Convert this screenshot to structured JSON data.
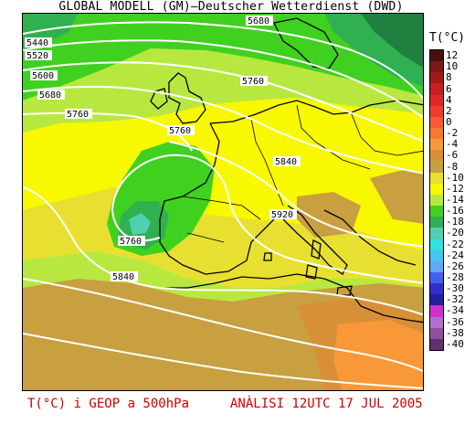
{
  "title": "GLOBAL MODELL (GM)—Deutscher Wetterdienst (DWD)",
  "footer": {
    "product": "T(°C) i GEOP a 500hPa",
    "analysis": "ANÀLISI 12UTC 17 JUL 2005"
  },
  "legend": {
    "unit": "T(°C)",
    "entries": [
      {
        "label": "12",
        "color": "#4a1010"
      },
      {
        "label": "10",
        "color": "#7a1a1a"
      },
      {
        "label": "8",
        "color": "#a01818"
      },
      {
        "label": "6",
        "color": "#c82020"
      },
      {
        "label": "4",
        "color": "#e02828"
      },
      {
        "label": "2",
        "color": "#f03c2c"
      },
      {
        "label": "0",
        "color": "#f85a30"
      },
      {
        "label": "-2",
        "color": "#f87830"
      },
      {
        "label": "-4",
        "color": "#f89838"
      },
      {
        "label": "-6",
        "color": "#d89038"
      },
      {
        "label": "-8",
        "color": "#c8a040"
      },
      {
        "label": "-10",
        "color": "#e8e030"
      },
      {
        "label": "-12",
        "color": "#f8f800"
      },
      {
        "label": "-14",
        "color": "#b8e840"
      },
      {
        "label": "-16",
        "color": "#40d020"
      },
      {
        "label": "-18",
        "color": "#30b050"
      },
      {
        "label": "-20",
        "color": "#50d0b0"
      },
      {
        "label": "-22",
        "color": "#30e0e0"
      },
      {
        "label": "-24",
        "color": "#40c8f0"
      },
      {
        "label": "-26",
        "color": "#60a8f8"
      },
      {
        "label": "-28",
        "color": "#4060f0"
      },
      {
        "label": "-30",
        "color": "#3030d0"
      },
      {
        "label": "-32",
        "color": "#2020a0"
      },
      {
        "label": "-34",
        "color": "#d030d0"
      },
      {
        "label": "-36",
        "color": "#b070d0"
      },
      {
        "label": "-38",
        "color": "#9050a0"
      },
      {
        "label": "-40",
        "color": "#603070"
      }
    ]
  },
  "contour_labels": [
    {
      "text": "5440"
    },
    {
      "text": "5520"
    },
    {
      "text": "5600"
    },
    {
      "text": "5680"
    },
    {
      "text": "5760"
    },
    {
      "text": "5760"
    },
    {
      "text": "5760"
    },
    {
      "text": "5760"
    },
    {
      "text": "5840"
    },
    {
      "text": "5840"
    },
    {
      "text": "5920"
    },
    {
      "text": "5680"
    }
  ]
}
